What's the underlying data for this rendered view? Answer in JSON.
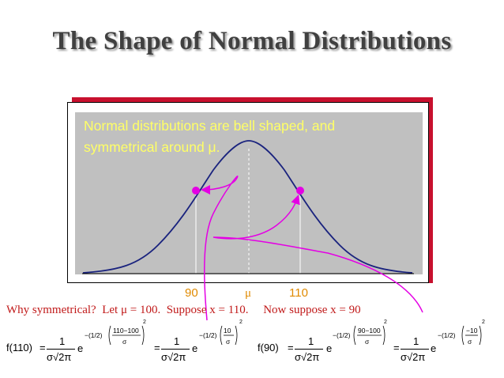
{
  "slide": {
    "title": "The Shape of Normal Distributions",
    "caption_line1": "Normal distributions are bell shaped, and",
    "caption_line2": "symmetrical around μ.",
    "tick_90": "90",
    "tick_mu": "μ",
    "tick_110": "110",
    "why_text": "Why symmetrical?  Let μ = 100.  Suppose x = 110.     Now suppose x = 90"
  },
  "formulas": {
    "lhs_110": "f(110)",
    "lhs_90": "f(90)",
    "eq": "=",
    "one": "1",
    "denom": "σ√2π",
    "e": "e",
    "half": "−(1/2)",
    "num_110": "110−100",
    "num_10": "10",
    "num_90": "90−100",
    "num_neg10": "−10",
    "sigma": "σ",
    "sq": "2"
  },
  "colors": {
    "curve": "#1a237e",
    "marker": "#e400e4",
    "arrow": "#e400e4",
    "caption": "#ffff66",
    "ticks": "#e08a00",
    "frame_shadow": "#c8102e"
  }
}
